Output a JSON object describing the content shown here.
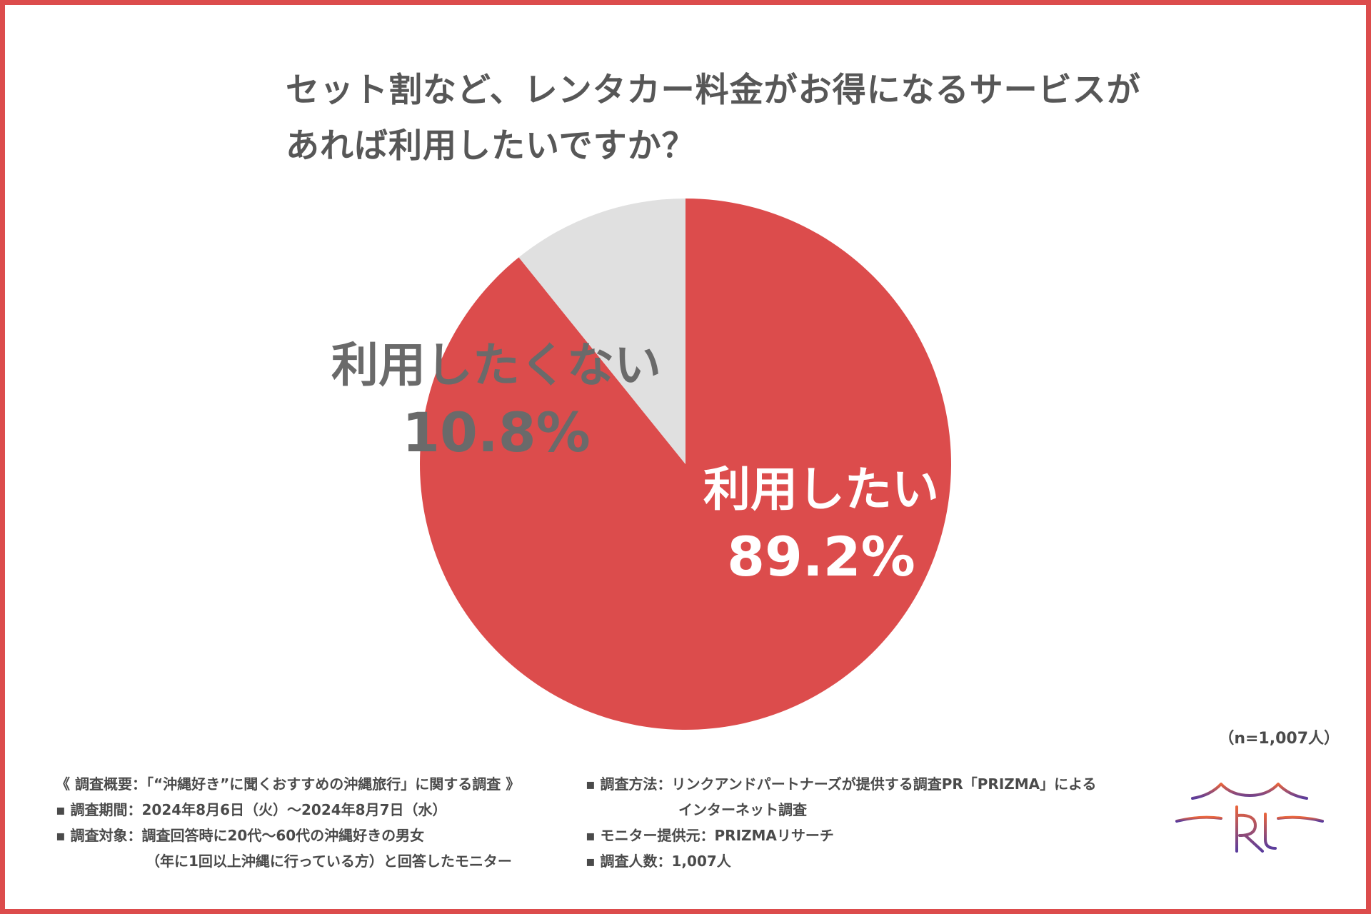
{
  "title": {
    "line1": "セット割など、レンタカー料金がお得になるサービスが",
    "line2": "あれば利用したいですか？"
  },
  "colors": {
    "border": "#dc4c4c",
    "yes": "#dc4c4c",
    "no": "#e0e0e0",
    "logo_top": "#e8643c",
    "logo_bottom": "#5a3c9c"
  },
  "chart_data": {
    "type": "pie",
    "title": "セット割など、レンタカー料金がお得になるサービスがあれば利用したいですか？",
    "slices": [
      {
        "label": "利用したい",
        "value": 89.2,
        "display": "89.2%",
        "color": "#dc4c4c"
      },
      {
        "label": "利用したくない",
        "value": 10.8,
        "display": "10.8%",
        "color": "#e0e0e0"
      }
    ],
    "start_angle_deg": 0,
    "direction": "clockwise"
  },
  "sample_note": "（n=1,007人）",
  "footer": {
    "left": [
      "《 調査概要：「“沖縄好き”に聞くおすすめの沖縄旅行」に関する調査 》",
      "▪ 調査期間：2024年8月6日（火）～2024年8月7日（水）",
      "▪ 調査対象：調査回答時に20代～60代の沖縄好きの男女",
      "（年に1回以上沖縄に行っている方）と回答したモニター"
    ],
    "right": [
      "▪ 調査方法：リンクアンドパートナーズが提供する調査PR「PRIZMA」による",
      "インターネット調査",
      "▪ モニター提供元：PRIZMAリサーチ",
      "▪ 調査人数：1,007人"
    ]
  }
}
